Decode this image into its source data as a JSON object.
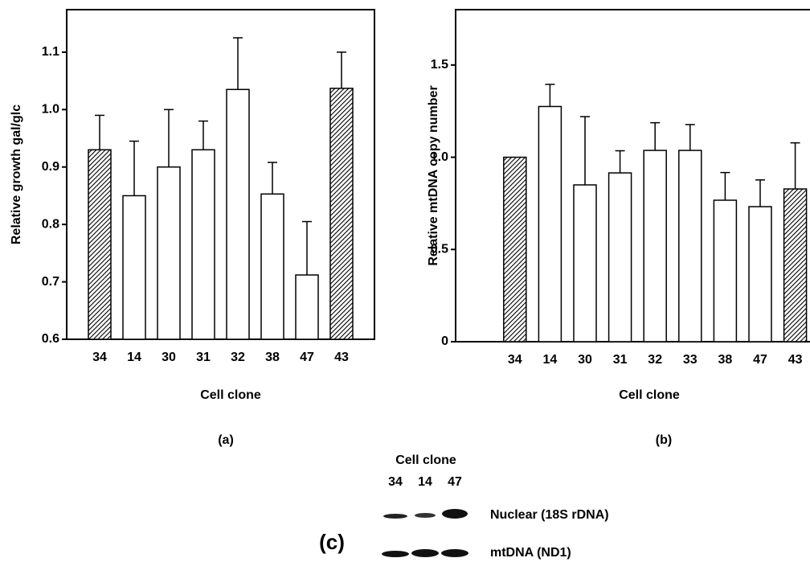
{
  "chart_data": [
    {
      "type": "bar",
      "panel_label": "(a)",
      "x_label": "Cell clone",
      "y_label": "Relative growth gal/glc",
      "categories": [
        "34",
        "14",
        "30",
        "31",
        "32",
        "38",
        "47",
        "43"
      ],
      "values": [
        0.93,
        0.85,
        0.9,
        0.93,
        1.035,
        0.853,
        0.712,
        1.037
      ],
      "errors": [
        0.06,
        0.095,
        0.1,
        0.05,
        0.09,
        0.055,
        0.093,
        0.063
      ],
      "hatched": [
        true,
        false,
        false,
        false,
        false,
        false,
        false,
        true
      ],
      "color": "#ffffff",
      "ylim": [
        0.6,
        1.174
      ],
      "yticks": [
        0.6,
        0.7,
        0.8,
        0.9,
        {
          "value": 1.0,
          "label": "1.0"
        },
        1.1
      ]
    },
    {
      "type": "bar",
      "panel_label": "(b)",
      "x_label": "Cell clone",
      "y_label": "Relative mtDNA copy number",
      "categories": [
        "34",
        "14",
        "30",
        "31",
        "32",
        "33",
        "38",
        "47",
        "43"
      ],
      "values": [
        1.0,
        1.275,
        0.85,
        0.915,
        1.037,
        1.037,
        0.767,
        0.732,
        0.828
      ],
      "errors": [
        null,
        0.12,
        0.37,
        0.12,
        0.15,
        0.14,
        0.15,
        0.145,
        0.25
      ],
      "hatched": [
        true,
        false,
        false,
        false,
        false,
        false,
        false,
        false,
        true
      ],
      "color": "#ffffff",
      "ylim": [
        0,
        1.8
      ],
      "yticks": [
        0,
        0.5,
        {
          "value": 1.0,
          "label": "1.0"
        },
        1.5
      ]
    }
  ],
  "blot": {
    "panel_label": "(c)",
    "title": "Cell clone",
    "lanes": [
      "34",
      "14",
      "47"
    ],
    "bands": [
      "Nuclear (18S rDNA)",
      "mtDNA (ND1)"
    ]
  }
}
